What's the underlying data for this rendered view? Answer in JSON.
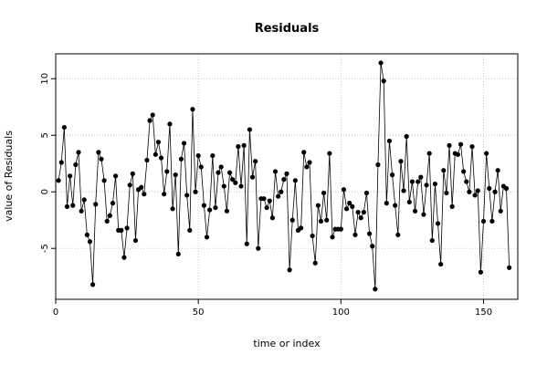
{
  "chart_data": {
    "type": "line",
    "title": "Residuals",
    "xlabel": "time or index",
    "ylabel": "value of Residuals",
    "xlim": [
      0,
      162
    ],
    "ylim": [
      -9.5,
      12.2
    ],
    "grid": true,
    "x_ticks": [
      0,
      50,
      100,
      150
    ],
    "y_ticks": [
      -5,
      0,
      5,
      10
    ],
    "x_tick_labels": [
      "0",
      "50",
      "100",
      "150"
    ],
    "y_tick_labels": [
      "-5",
      "0",
      "5",
      "10"
    ],
    "series": [
      {
        "values": [
          1.0,
          2.6,
          5.7,
          -1.3,
          1.4,
          -1.2,
          2.4,
          3.5,
          -1.7,
          -0.7,
          -3.8,
          -4.4,
          -8.2,
          -1.1,
          3.5,
          2.9,
          1.0,
          -2.6,
          -2.1,
          -1.0,
          1.4,
          -3.4,
          -3.4,
          -5.8,
          -3.2,
          0.6,
          1.6,
          -4.3,
          0.2,
          0.4,
          -0.2,
          2.8,
          6.3,
          6.8,
          3.3,
          4.4,
          3.0,
          -0.2,
          1.8,
          6.0,
          -1.5,
          1.5,
          -5.5,
          2.9,
          4.3,
          -0.3,
          -3.4,
          7.3,
          0.0,
          3.2,
          2.2,
          -1.2,
          -4.0,
          -1.6,
          3.2,
          -1.4,
          1.7,
          2.2,
          0.5,
          -1.7,
          1.7,
          1.1,
          0.8,
          4.0,
          0.5,
          4.1,
          -4.6,
          5.5,
          1.3,
          2.7,
          -5.0,
          -0.6,
          -0.6,
          -1.4,
          -0.8,
          -2.3,
          1.8,
          -0.4,
          0.0,
          1.1,
          1.6,
          -6.9,
          -2.5,
          1.0,
          -3.4,
          -3.2,
          3.5,
          2.2,
          2.6,
          -3.9,
          -6.3,
          -1.2,
          -2.6,
          -0.1,
          -2.5,
          3.4,
          -4.0,
          -3.3,
          -3.3,
          -3.3,
          0.2,
          -1.5,
          -1.0,
          -1.3,
          -3.8,
          -1.8,
          -2.3,
          -1.8,
          -0.1,
          -3.7,
          -4.8,
          -8.6,
          2.4,
          11.4,
          9.8,
          -1.0,
          4.5,
          1.5,
          -1.2,
          -3.8,
          2.7,
          0.1,
          4.9,
          -0.9,
          0.9,
          -1.7,
          0.9,
          1.3,
          -2.0,
          0.6,
          3.4,
          -4.3,
          0.7,
          -2.8,
          -6.4,
          1.9,
          -0.1,
          4.1,
          -1.3,
          3.4,
          3.3,
          4.2,
          1.8,
          0.9,
          0.0,
          4.0,
          -0.3,
          0.1,
          -7.1,
          -2.6,
          3.4,
          0.3,
          -2.6,
          0.0,
          1.9,
          -1.7,
          0.5,
          0.3,
          -6.7
        ]
      }
    ]
  }
}
